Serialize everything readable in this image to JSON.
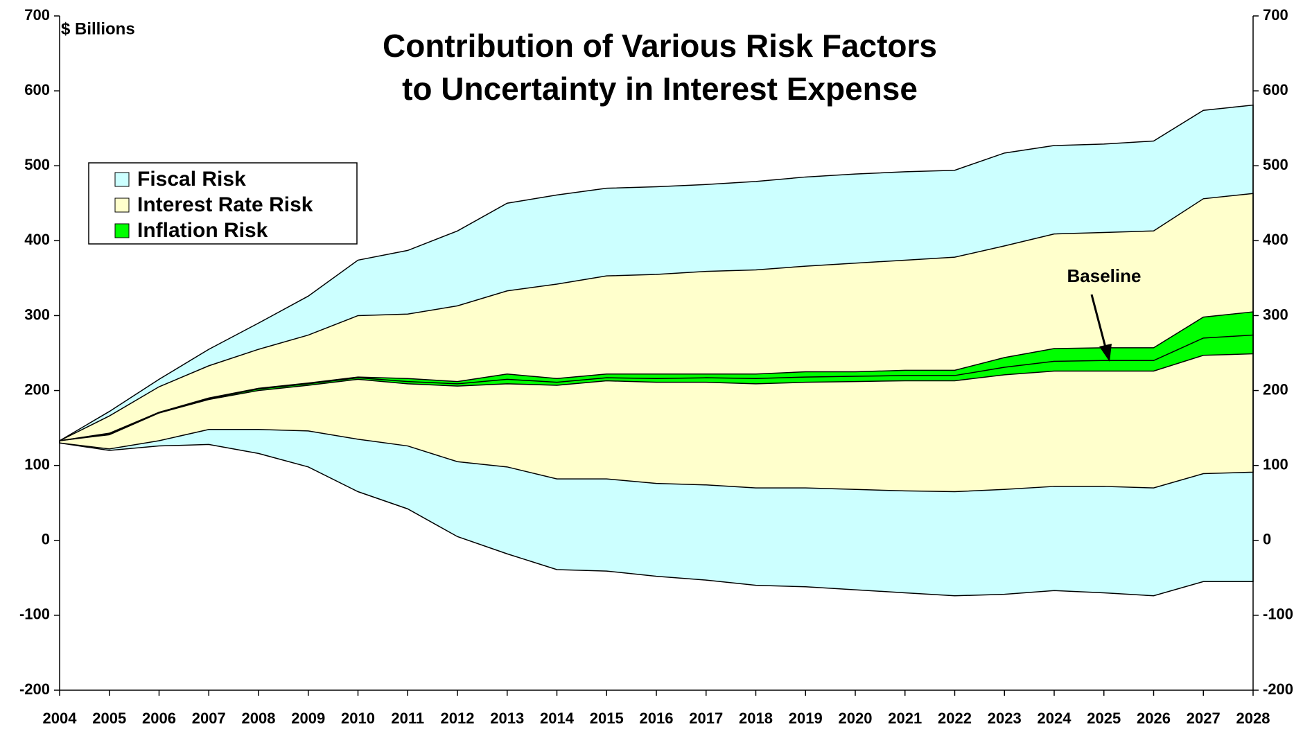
{
  "chart_data": {
    "type": "band",
    "title": [
      "Contribution of Various Risk Factors",
      "to Uncertainty in Interest Expense"
    ],
    "y_label": "$ Billions",
    "annotation": "Baseline",
    "x": [
      2004,
      2005,
      2006,
      2007,
      2008,
      2009,
      2010,
      2011,
      2012,
      2013,
      2014,
      2015,
      2016,
      2017,
      2018,
      2019,
      2020,
      2021,
      2022,
      2023,
      2024,
      2025,
      2026,
      2027,
      2028
    ],
    "xlim": [
      2004,
      2028
    ],
    "xticks": [
      2004,
      2005,
      2006,
      2007,
      2008,
      2009,
      2010,
      2011,
      2012,
      2013,
      2014,
      2015,
      2016,
      2017,
      2018,
      2019,
      2020,
      2021,
      2022,
      2023,
      2024,
      2025,
      2026,
      2027,
      2028
    ],
    "ylim": [
      -200,
      700
    ],
    "yticks": [
      -200,
      -100,
      0,
      100,
      200,
      300,
      400,
      500,
      600,
      700
    ],
    "y2lim": [
      -200,
      700
    ],
    "y2ticks": [
      -200,
      -100,
      0,
      100,
      200,
      300,
      400,
      500,
      600,
      700
    ],
    "legend": "upper-left",
    "series": [
      {
        "name": "Fiscal Risk",
        "color": "#ccffff",
        "upper": [
          133,
          172,
          215,
          255,
          290,
          326,
          374,
          387,
          413,
          450,
          461,
          470,
          472,
          475,
          479,
          485,
          489,
          492,
          494,
          517,
          527,
          529,
          533,
          574,
          581
        ],
        "lower": [
          130,
          120,
          126,
          128,
          116,
          98,
          65,
          42,
          5,
          -18,
          -39,
          -41,
          -48,
          -53,
          -60,
          -62,
          -66,
          -70,
          -74,
          -72,
          -67,
          -70,
          -74,
          -55,
          -55
        ]
      },
      {
        "name": "Interest Rate Risk",
        "color": "#ffffcc",
        "upper": [
          133,
          166,
          205,
          233,
          255,
          274,
          300,
          302,
          313,
          333,
          342,
          353,
          355,
          359,
          361,
          366,
          370,
          374,
          378,
          393,
          409,
          411,
          413,
          456,
          463
        ],
        "lower": [
          130,
          122,
          133,
          148,
          148,
          146,
          135,
          126,
          105,
          98,
          82,
          82,
          76,
          74,
          70,
          70,
          68,
          66,
          65,
          68,
          72,
          72,
          70,
          89,
          91
        ]
      },
      {
        "name": "Inflation Risk",
        "color": "#00ff00",
        "upper": [
          133,
          143,
          171,
          190,
          203,
          210,
          218,
          216,
          212,
          222,
          216,
          222,
          222,
          222,
          222,
          225,
          225,
          227,
          227,
          244,
          256,
          257,
          257,
          298,
          305
        ],
        "lower": [
          133,
          141,
          170,
          188,
          200,
          207,
          215,
          209,
          206,
          209,
          207,
          213,
          211,
          211,
          209,
          211,
          212,
          213,
          213,
          221,
          226,
          226,
          226,
          247,
          249
        ]
      }
    ],
    "baseline": [
      133,
      142,
      171,
      189,
      202,
      209,
      217,
      212,
      209,
      215,
      211,
      217,
      216,
      217,
      216,
      218,
      219,
      220,
      220,
      231,
      239,
      240,
      240,
      270,
      274
    ]
  }
}
